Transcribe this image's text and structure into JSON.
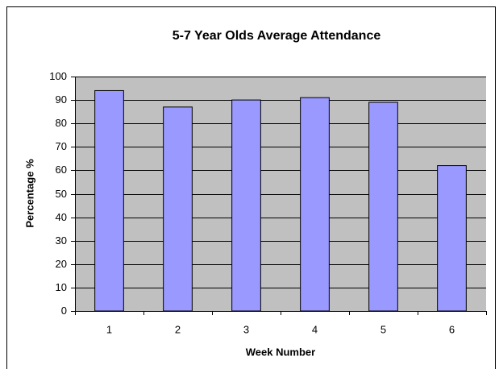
{
  "chart_data": {
    "type": "bar",
    "title": "5-7 Year Olds Average Attendance",
    "x_label": "Week Number",
    "y_label": "Percentage %",
    "categories": [
      "1",
      "2",
      "3",
      "4",
      "5",
      "6"
    ],
    "values": [
      94,
      87,
      90,
      91,
      89,
      62
    ],
    "color": "#9999ff",
    "plot_background": "#c0c0c0",
    "ylim": [
      0,
      100
    ],
    "yticks": [
      0,
      10,
      20,
      30,
      40,
      50,
      60,
      70,
      80,
      90,
      100
    ],
    "grid": true
  }
}
